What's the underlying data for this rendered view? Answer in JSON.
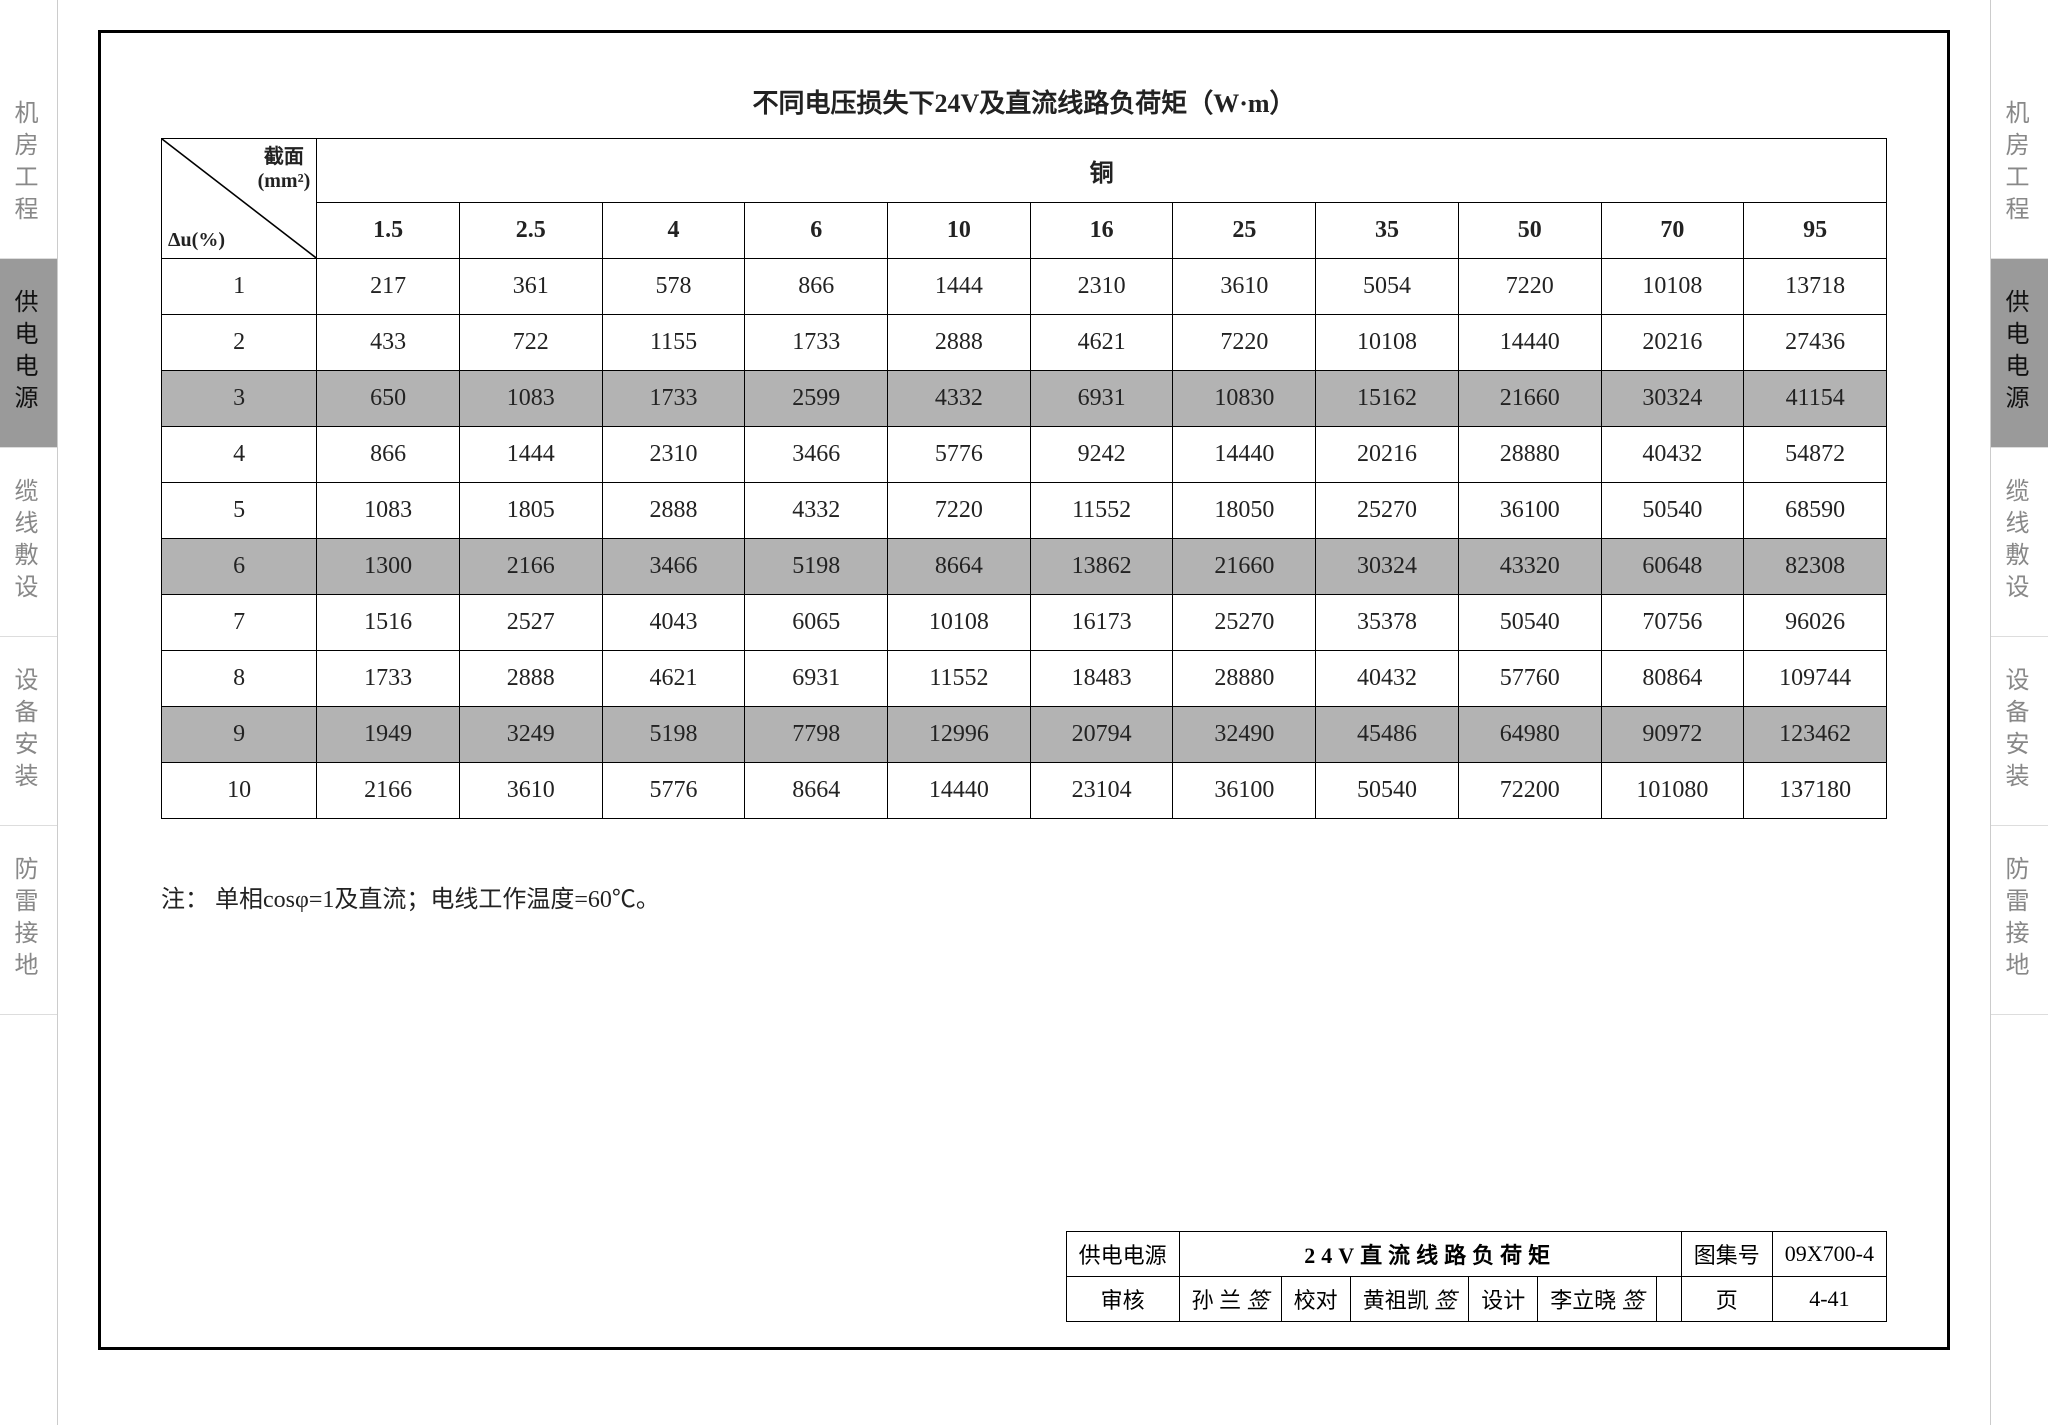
{
  "sidebar": {
    "tabs": [
      {
        "label": "机房工程",
        "active": false
      },
      {
        "label": "供电电源",
        "active": true
      },
      {
        "label": "缆线敷设",
        "active": false
      },
      {
        "label": "设备安装",
        "active": false
      },
      {
        "label": "防雷接地",
        "active": false
      }
    ]
  },
  "table": {
    "title": "不同电压损失下24V及直流线路负荷矩（W·m）",
    "corner_top": "截面\n(mm²)",
    "corner_bottom": "Δu(%)",
    "material_header": "铜",
    "columns": [
      "1.5",
      "2.5",
      "4",
      "6",
      "10",
      "16",
      "25",
      "35",
      "50",
      "70",
      "95"
    ],
    "rows": [
      {
        "label": "1",
        "values": [
          "217",
          "361",
          "578",
          "866",
          "1444",
          "2310",
          "3610",
          "5054",
          "7220",
          "10108",
          "13718"
        ],
        "shaded": false
      },
      {
        "label": "2",
        "values": [
          "433",
          "722",
          "1155",
          "1733",
          "2888",
          "4621",
          "7220",
          "10108",
          "14440",
          "20216",
          "27436"
        ],
        "shaded": false
      },
      {
        "label": "3",
        "values": [
          "650",
          "1083",
          "1733",
          "2599",
          "4332",
          "6931",
          "10830",
          "15162",
          "21660",
          "30324",
          "41154"
        ],
        "shaded": true
      },
      {
        "label": "4",
        "values": [
          "866",
          "1444",
          "2310",
          "3466",
          "5776",
          "9242",
          "14440",
          "20216",
          "28880",
          "40432",
          "54872"
        ],
        "shaded": false
      },
      {
        "label": "5",
        "values": [
          "1083",
          "1805",
          "2888",
          "4332",
          "7220",
          "11552",
          "18050",
          "25270",
          "36100",
          "50540",
          "68590"
        ],
        "shaded": false
      },
      {
        "label": "6",
        "values": [
          "1300",
          "2166",
          "3466",
          "5198",
          "8664",
          "13862",
          "21660",
          "30324",
          "43320",
          "60648",
          "82308"
        ],
        "shaded": true
      },
      {
        "label": "7",
        "values": [
          "1516",
          "2527",
          "4043",
          "6065",
          "10108",
          "16173",
          "25270",
          "35378",
          "50540",
          "70756",
          "96026"
        ],
        "shaded": false
      },
      {
        "label": "8",
        "values": [
          "1733",
          "2888",
          "4621",
          "6931",
          "11552",
          "18483",
          "28880",
          "40432",
          "57760",
          "80864",
          "109744"
        ],
        "shaded": false
      },
      {
        "label": "9",
        "values": [
          "1949",
          "3249",
          "5198",
          "7798",
          "12996",
          "20794",
          "32490",
          "45486",
          "64980",
          "90972",
          "123462"
        ],
        "shaded": true
      },
      {
        "label": "10",
        "values": [
          "2166",
          "3610",
          "5776",
          "8664",
          "14440",
          "23104",
          "36100",
          "50540",
          "72200",
          "101080",
          "137180"
        ],
        "shaded": false
      }
    ],
    "header_bg": "#ffffff",
    "shaded_bg": "#b3b3b3",
    "border_color": "#000000",
    "font_size": 24
  },
  "note": {
    "prefix": "注：",
    "text": "单相cosφ=1及直流；电线工作温度=60℃。"
  },
  "footer": {
    "category_label": "供电电源",
    "title": "24V直流线路负荷矩",
    "drawing_no_label": "图集号",
    "drawing_no": "09X700-4",
    "review_label": "审核",
    "reviewer": "孙 兰",
    "check_label": "校对",
    "checker": "黄祖凯",
    "design_label": "设计",
    "designer": "李立晓",
    "page_label": "页",
    "page_no": "4-41"
  }
}
